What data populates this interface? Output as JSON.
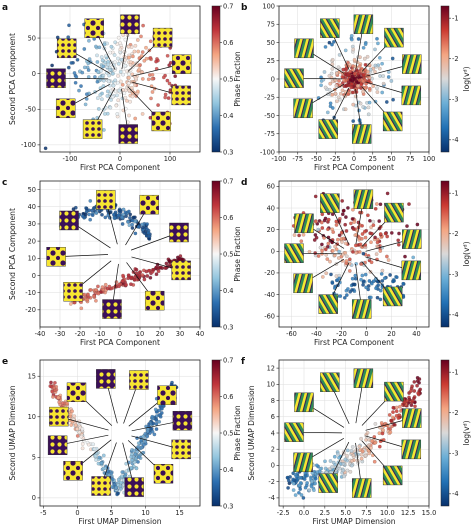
{
  "colors": {
    "phase_scale": [
      "#08306b",
      "#2c6fb0",
      "#92c5de",
      "#f7f7f7",
      "#f4a582",
      "#c0363c",
      "#67001f"
    ],
    "strain_scale": [
      "#08306b",
      "#2171b5",
      "#6baed6",
      "#d9d9d9",
      "#f4a582",
      "#cb3b32",
      "#67001f"
    ],
    "inset_dark": "#3b0f58",
    "inset_light": "#f7e631",
    "inset_green": "#2e8b57"
  },
  "chart_data": [
    {
      "panel": "a",
      "type": "scatter",
      "xlabel": "First PCA Component",
      "ylabel": "Second PCA Component",
      "xlim": [
        -160,
        160
      ],
      "ylim": [
        -110,
        95
      ],
      "xticks": [
        "-100",
        "0",
        "100"
      ],
      "yticks": [
        "-100",
        "-50",
        "0",
        "50"
      ],
      "colorbar": {
        "label": "Phase Fraction",
        "range": [
          0.3,
          0.7
        ],
        "ticks": [
          "0.3",
          "0.4",
          "0.5",
          "0.6",
          "0.7"
        ]
      },
      "insets": 11
    },
    {
      "panel": "b",
      "type": "scatter",
      "xlabel": "First PCA Component",
      "ylabel": "",
      "xlim": [
        -100,
        100
      ],
      "ylim": [
        -100,
        100
      ],
      "xticks": [
        "-100",
        "-75",
        "-50",
        "-25",
        "0",
        "25",
        "50",
        "75",
        "100"
      ],
      "yticks": [
        "-100",
        "-75",
        "-50",
        "-25",
        "0",
        "25",
        "50",
        "75",
        "100"
      ],
      "colorbar": {
        "label": "log(vᵈ)",
        "range": [
          -4.3,
          -0.7
        ],
        "ticks": [
          "-1",
          "-2",
          "-3",
          "-4"
        ]
      },
      "insets": 11
    },
    {
      "panel": "c",
      "type": "scatter",
      "xlabel": "First PCA Component",
      "ylabel": "Second PCA Component",
      "xlim": [
        -40,
        40
      ],
      "ylim": [
        -30,
        55
      ],
      "xticks": [
        "-40",
        "-30",
        "-20",
        "-10",
        "0",
        "10",
        "20",
        "30",
        "40"
      ],
      "yticks": [
        "-20",
        "-10",
        "0",
        "10",
        "20",
        "30",
        "40",
        "50"
      ],
      "colorbar": {
        "label": "Phase Fraction",
        "range": [
          0.3,
          0.7
        ],
        "ticks": [
          "0.3",
          "0.4",
          "0.5",
          "0.6",
          "0.7"
        ]
      },
      "insets": 9
    },
    {
      "panel": "d",
      "type": "scatter",
      "xlabel": "First PCA Component",
      "ylabel": "",
      "xlim": [
        -70,
        50
      ],
      "ylim": [
        -70,
        65
      ],
      "xticks": [
        "-60",
        "-40",
        "-20",
        "0",
        "20",
        "40"
      ],
      "yticks": [
        "-60",
        "-40",
        "-20",
        "0",
        "20",
        "40",
        "60"
      ],
      "colorbar": {
        "label": "log(vᵈ)",
        "range": [
          -4.3,
          -0.7
        ],
        "ticks": [
          "-1",
          "-2",
          "-3",
          "-4"
        ]
      },
      "insets": 11
    },
    {
      "panel": "e",
      "type": "scatter",
      "xlabel": "First UMAP Dimension",
      "ylabel": "Second UMAP Dimension",
      "xlim": [
        -5.5,
        18
      ],
      "ylim": [
        -1,
        17
      ],
      "xticks": [
        "-5",
        "0",
        "5",
        "10",
        "15"
      ],
      "yticks": [
        "0",
        "5",
        "10",
        "15"
      ],
      "colorbar": {
        "label": "Phase Fraction",
        "range": [
          0.3,
          0.7
        ],
        "ticks": [
          "0.3",
          "0.4",
          "0.5",
          "0.6",
          "0.7"
        ]
      },
      "insets": 12
    },
    {
      "panel": "f",
      "type": "scatter",
      "xlabel": "First UMAP Dimension",
      "ylabel": "Second UMAP Dimension",
      "xlim": [
        -3,
        15
      ],
      "ylim": [
        -5,
        13
      ],
      "xticks": [
        "-2.5",
        "0.0",
        "2.5",
        "5.0",
        "7.5",
        "10.0",
        "12.5",
        "15.0"
      ],
      "yticks": [
        "-4",
        "-2",
        "0",
        "2",
        "4",
        "6",
        "8",
        "10",
        "12"
      ],
      "colorbar": {
        "label": "log(vᵈ)",
        "range": [
          -4.3,
          -0.7
        ],
        "ticks": [
          "-1",
          "-2",
          "-3",
          "-4"
        ]
      },
      "insets": 11
    }
  ]
}
